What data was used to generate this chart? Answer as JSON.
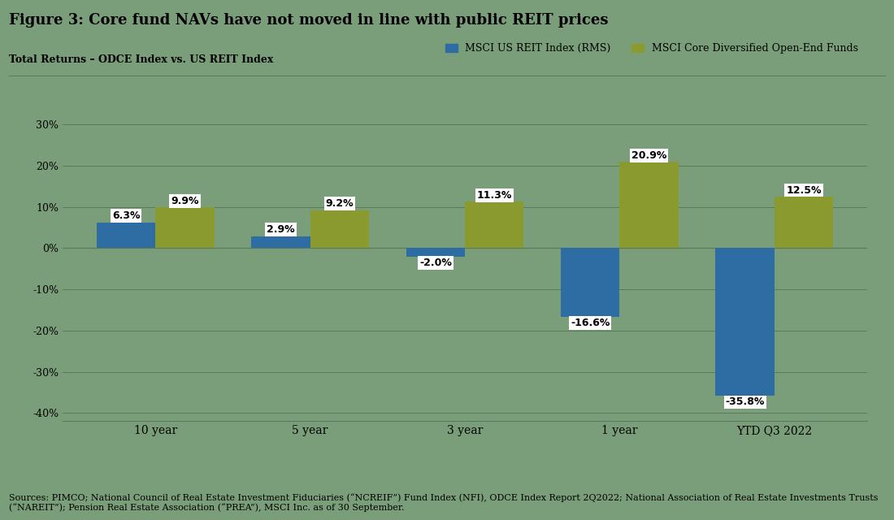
{
  "title": "Figure 3: Core fund NAVs have not moved in line with public REIT prices",
  "subtitle": "Total Returns – ODCE Index vs. US REIT Index",
  "categories": [
    "10 year",
    "5 year",
    "3 year",
    "1 year",
    "YTD Q3 2022"
  ],
  "reit_values": [
    6.3,
    2.9,
    -2.0,
    -16.6,
    -35.8
  ],
  "odce_values": [
    9.9,
    9.2,
    11.3,
    20.9,
    12.5
  ],
  "reit_color": "#2E6DA4",
  "odce_color": "#8B9A2E",
  "background_color": "#7A9E7A",
  "reit_label": "MSCI US REIT Index (RMS)",
  "odce_label": "MSCI Core Diversified Open-End Funds",
  "ylim": [
    -42,
    35
  ],
  "yticks": [
    -40,
    -30,
    -20,
    -10,
    0,
    10,
    20,
    30
  ],
  "ytick_labels": [
    "-40%",
    "-30%",
    "-20%",
    "-10%",
    "0%",
    "10%",
    "20%",
    "30%"
  ],
  "source_text": "Sources: PIMCO; National Council of Real Estate Investment Fiduciaries (“NCREIF”) Fund Index (NFI), ODCE Index Report 2Q2022; National Association of Real Estate Investments Trusts\n(“NAREIT”); Pension Real Estate Association (“PREA”), MSCI Inc. as of 30 September.",
  "bar_width": 0.38,
  "title_fontsize": 13,
  "subtitle_fontsize": 9,
  "label_fontsize": 9,
  "tick_fontsize": 9,
  "legend_fontsize": 9,
  "source_fontsize": 8
}
